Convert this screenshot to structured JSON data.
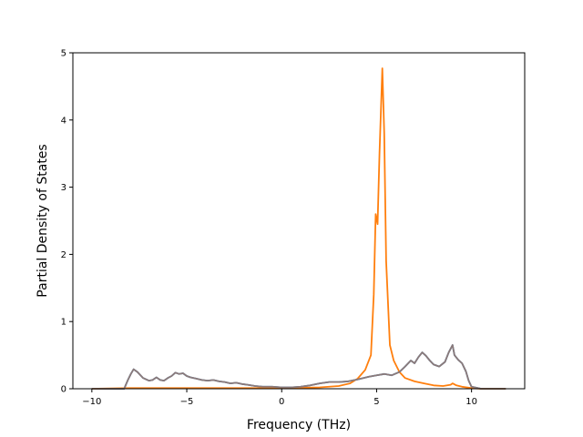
{
  "chart_data": {
    "type": "line",
    "title": "",
    "xlabel": "Frequency (THz)",
    "ylabel": "Partial Density of States",
    "xlim": [
      -11,
      12.8
    ],
    "ylim": [
      0,
      5
    ],
    "xticks": [
      -10,
      -5,
      0,
      5,
      10
    ],
    "xtick_labels": [
      "−10",
      "−5",
      "0",
      "5",
      "10"
    ],
    "yticks": [
      0,
      1,
      2,
      3,
      4,
      5
    ],
    "ytick_labels": [
      "0",
      "1",
      "2",
      "3",
      "4",
      "5"
    ],
    "grid": false,
    "legend": "none",
    "series": [
      {
        "color": "#1f77b4",
        "points": [
          [
            -10,
            0
          ],
          [
            -8.3,
            0
          ],
          [
            -8.1,
            0.13
          ],
          [
            -7.95,
            0.22
          ],
          [
            -7.8,
            0.29
          ],
          [
            -7.6,
            0.25
          ],
          [
            -7.3,
            0.16
          ],
          [
            -7,
            0.12
          ],
          [
            -6.8,
            0.13
          ],
          [
            -6.6,
            0.17
          ],
          [
            -6.4,
            0.13
          ],
          [
            -6.2,
            0.12
          ],
          [
            -6,
            0.16
          ],
          [
            -5.8,
            0.19
          ],
          [
            -5.6,
            0.24
          ],
          [
            -5.4,
            0.22
          ],
          [
            -5.2,
            0.23
          ],
          [
            -5,
            0.19
          ],
          [
            -4.8,
            0.17
          ],
          [
            -4.5,
            0.15
          ],
          [
            -4.2,
            0.13
          ],
          [
            -3.9,
            0.12
          ],
          [
            -3.6,
            0.13
          ],
          [
            -3.3,
            0.11
          ],
          [
            -3,
            0.1
          ],
          [
            -2.7,
            0.08
          ],
          [
            -2.4,
            0.09
          ],
          [
            -2.1,
            0.07
          ],
          [
            -1.8,
            0.06
          ],
          [
            -1.4,
            0.04
          ],
          [
            -1,
            0.03
          ],
          [
            -0.5,
            0.03
          ],
          [
            0,
            0.02
          ],
          [
            0.5,
            0.02
          ],
          [
            1,
            0.03
          ],
          [
            1.5,
            0.05
          ],
          [
            2,
            0.08
          ],
          [
            2.5,
            0.1
          ],
          [
            3,
            0.1
          ],
          [
            3.5,
            0.11
          ],
          [
            4,
            0.14
          ],
          [
            4.3,
            0.16
          ],
          [
            4.6,
            0.18
          ],
          [
            5,
            0.2
          ],
          [
            5.4,
            0.22
          ],
          [
            5.8,
            0.2
          ],
          [
            6.2,
            0.25
          ],
          [
            6.5,
            0.33
          ],
          [
            6.8,
            0.42
          ],
          [
            7,
            0.38
          ],
          [
            7.2,
            0.47
          ],
          [
            7.4,
            0.54
          ],
          [
            7.6,
            0.49
          ],
          [
            7.8,
            0.42
          ],
          [
            8,
            0.36
          ],
          [
            8.3,
            0.33
          ],
          [
            8.6,
            0.4
          ],
          [
            8.8,
            0.54
          ],
          [
            9,
            0.65
          ],
          [
            9.1,
            0.5
          ],
          [
            9.3,
            0.43
          ],
          [
            9.5,
            0.38
          ],
          [
            9.7,
            0.26
          ],
          [
            9.85,
            0.12
          ],
          [
            10,
            0.03
          ],
          [
            10.5,
            0
          ],
          [
            11.8,
            0
          ]
        ]
      },
      {
        "color": "#ff7f0e",
        "points": [
          [
            -10,
            0
          ],
          [
            -8,
            0.01
          ],
          [
            -6,
            0.01
          ],
          [
            -4,
            0.01
          ],
          [
            -2,
            0.01
          ],
          [
            0,
            0.01
          ],
          [
            2,
            0.02
          ],
          [
            3,
            0.04
          ],
          [
            3.6,
            0.08
          ],
          [
            4,
            0.15
          ],
          [
            4.4,
            0.28
          ],
          [
            4.7,
            0.5
          ],
          [
            4.85,
            1.4
          ],
          [
            4.95,
            2.6
          ],
          [
            5.05,
            2.45
          ],
          [
            5.15,
            3.5
          ],
          [
            5.3,
            4.77
          ],
          [
            5.4,
            3.8
          ],
          [
            5.5,
            1.9
          ],
          [
            5.7,
            0.65
          ],
          [
            5.9,
            0.42
          ],
          [
            6.2,
            0.25
          ],
          [
            6.5,
            0.16
          ],
          [
            7,
            0.11
          ],
          [
            7.5,
            0.08
          ],
          [
            8,
            0.05
          ],
          [
            8.5,
            0.04
          ],
          [
            8.9,
            0.06
          ],
          [
            9,
            0.08
          ],
          [
            9.2,
            0.05
          ],
          [
            9.5,
            0.03
          ],
          [
            10,
            0.01
          ],
          [
            10.5,
            0
          ],
          [
            11.8,
            0
          ]
        ]
      },
      {
        "color": "#8c7a7a",
        "points": [
          [
            -10,
            0
          ],
          [
            -8.3,
            0
          ],
          [
            -8.1,
            0.13
          ],
          [
            -7.95,
            0.22
          ],
          [
            -7.8,
            0.29
          ],
          [
            -7.6,
            0.25
          ],
          [
            -7.3,
            0.16
          ],
          [
            -7,
            0.12
          ],
          [
            -6.8,
            0.13
          ],
          [
            -6.6,
            0.17
          ],
          [
            -6.4,
            0.13
          ],
          [
            -6.2,
            0.12
          ],
          [
            -6,
            0.16
          ],
          [
            -5.8,
            0.19
          ],
          [
            -5.6,
            0.24
          ],
          [
            -5.4,
            0.22
          ],
          [
            -5.2,
            0.23
          ],
          [
            -5,
            0.19
          ],
          [
            -4.8,
            0.17
          ],
          [
            -4.5,
            0.15
          ],
          [
            -4.2,
            0.13
          ],
          [
            -3.9,
            0.12
          ],
          [
            -3.6,
            0.13
          ],
          [
            -3.3,
            0.11
          ],
          [
            -3,
            0.1
          ],
          [
            -2.7,
            0.08
          ],
          [
            -2.4,
            0.09
          ],
          [
            -2.1,
            0.07
          ],
          [
            -1.8,
            0.06
          ],
          [
            -1.4,
            0.04
          ],
          [
            -1,
            0.03
          ],
          [
            -0.5,
            0.03
          ],
          [
            0,
            0.02
          ],
          [
            0.5,
            0.02
          ],
          [
            1,
            0.03
          ],
          [
            1.5,
            0.05
          ],
          [
            2,
            0.08
          ],
          [
            2.5,
            0.1
          ],
          [
            3,
            0.1
          ],
          [
            3.5,
            0.11
          ],
          [
            4,
            0.14
          ],
          [
            4.3,
            0.16
          ],
          [
            4.6,
            0.18
          ],
          [
            5,
            0.2
          ],
          [
            5.4,
            0.22
          ],
          [
            5.8,
            0.2
          ],
          [
            6.2,
            0.25
          ],
          [
            6.5,
            0.33
          ],
          [
            6.8,
            0.42
          ],
          [
            7,
            0.38
          ],
          [
            7.2,
            0.47
          ],
          [
            7.4,
            0.54
          ],
          [
            7.6,
            0.49
          ],
          [
            7.8,
            0.42
          ],
          [
            8,
            0.36
          ],
          [
            8.3,
            0.33
          ],
          [
            8.6,
            0.4
          ],
          [
            8.8,
            0.54
          ],
          [
            9,
            0.65
          ],
          [
            9.1,
            0.5
          ],
          [
            9.3,
            0.43
          ],
          [
            9.5,
            0.38
          ],
          [
            9.7,
            0.26
          ],
          [
            9.85,
            0.12
          ],
          [
            10,
            0.03
          ],
          [
            10.5,
            0
          ],
          [
            11.8,
            0
          ]
        ]
      }
    ]
  }
}
